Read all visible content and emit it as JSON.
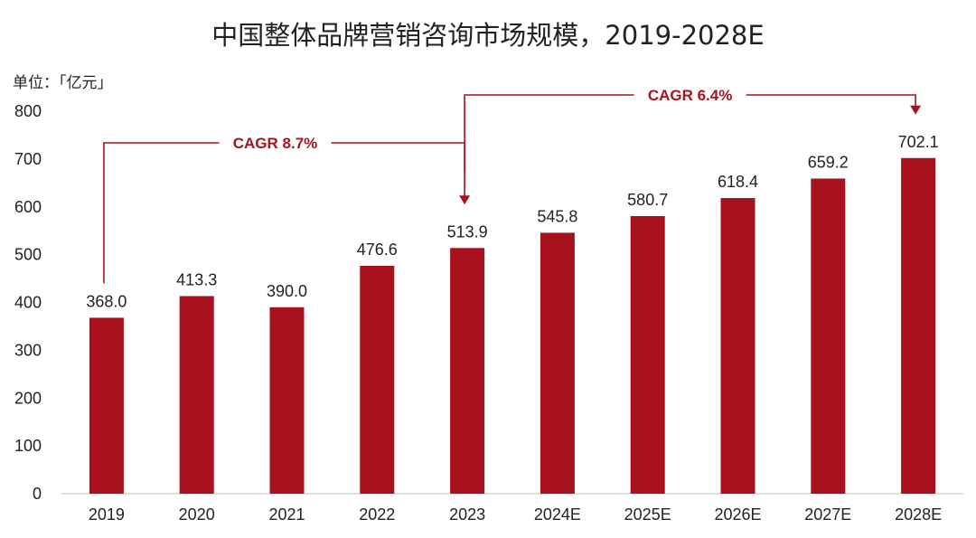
{
  "chart_data": {
    "type": "bar",
    "title": "中国整体品牌营销咨询市场规模，2019-2028E",
    "unit": "单位：「亿元」",
    "categories": [
      "2019",
      "2020",
      "2021",
      "2022",
      "2023",
      "2024E",
      "2025E",
      "2026E",
      "2027E",
      "2028E"
    ],
    "values": [
      368.0,
      413.3,
      390.0,
      476.6,
      513.9,
      545.8,
      580.7,
      618.4,
      659.2,
      702.1
    ],
    "value_labels": [
      "368.0",
      "413.3",
      "390.0",
      "476.6",
      "513.9",
      "545.8",
      "580.7",
      "618.4",
      "659.2",
      "702.1"
    ],
    "ylim": [
      0,
      800
    ],
    "yticks": [
      0,
      100,
      200,
      300,
      400,
      500,
      600,
      700,
      800
    ],
    "grid": false,
    "bar_color": "#A8121E",
    "annotations": [
      {
        "text": "CAGR 8.7%",
        "from": "2019",
        "to": "2023"
      },
      {
        "text": "CAGR 6.4%",
        "from": "2023",
        "to": "2028E"
      }
    ]
  }
}
